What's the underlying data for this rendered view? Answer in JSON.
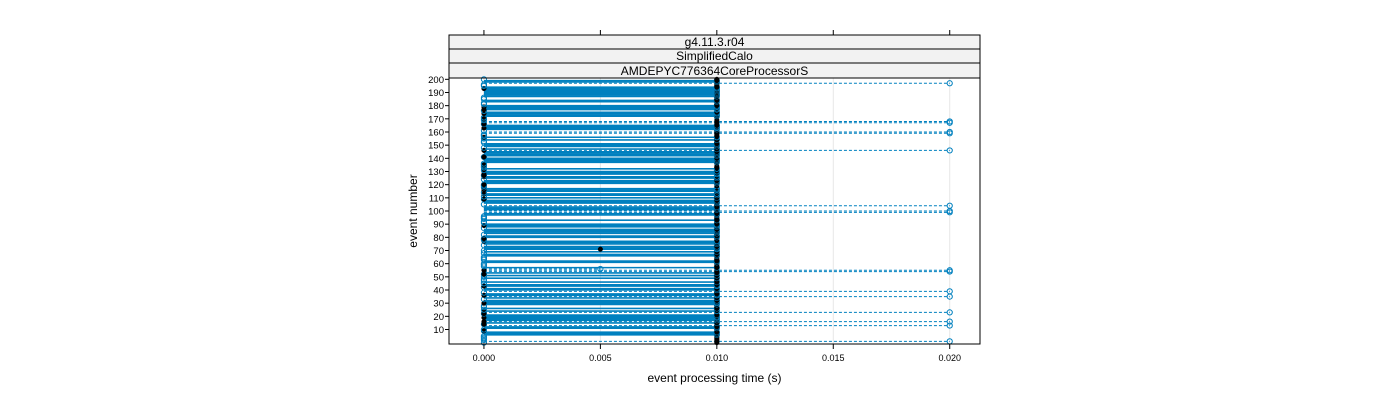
{
  "chart_data": {
    "type": "scatter",
    "strips": [
      "g4.11.3.r04",
      "SimplifiedCalo",
      "AMDEPYC776364CoreProcessorS"
    ],
    "xlabel": "event processing time (s)",
    "ylabel": "event number",
    "xlim": [
      -0.0015,
      0.0213
    ],
    "ylim": [
      -1,
      201
    ],
    "x_ticks": [
      0.0,
      0.005,
      0.01,
      0.015,
      0.02
    ],
    "x_tick_labels": [
      "0.000",
      "0.005",
      "0.010",
      "0.015",
      "0.020"
    ],
    "y_ticks": [
      10,
      20,
      30,
      40,
      50,
      60,
      70,
      80,
      90,
      100,
      110,
      120,
      130,
      140,
      150,
      160,
      170,
      180,
      190,
      200
    ],
    "y_tick_labels": [
      "10",
      "20",
      "30",
      "40",
      "50",
      "60",
      "70",
      "80",
      "90",
      "100",
      "110",
      "120",
      "130",
      "140",
      "150",
      "160",
      "170",
      "180",
      "190",
      "200"
    ],
    "grid": true,
    "series": [
      {
        "color": "#0080bf",
        "marker": "open-circle",
        "note_points": "most events at 0.000 or 0.010 s; outliers at 0.020 s",
        "points_020": [
          1,
          13,
          16,
          23,
          35,
          39,
          54,
          55,
          99,
          100,
          104,
          146,
          159,
          160,
          167,
          168,
          197
        ],
        "points_005": [
          56
        ]
      },
      {
        "color": "#000000",
        "marker": "filled-circle",
        "points_005": [
          71
        ]
      }
    ]
  }
}
